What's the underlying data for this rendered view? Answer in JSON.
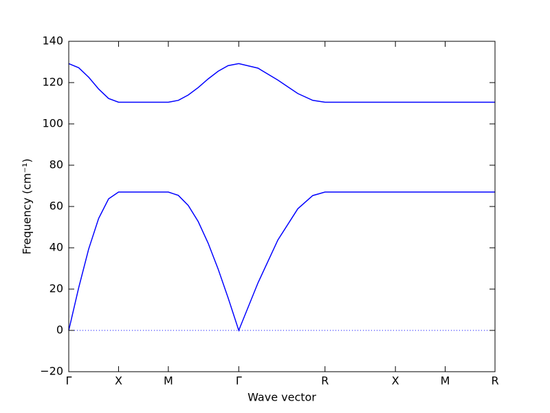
{
  "chart_data": {
    "type": "line",
    "xlabel": "Wave vector",
    "ylabel": "Frequency (cm⁻¹)",
    "x": [
      0,
      0.1,
      0.2,
      0.3,
      0.4,
      0.5,
      0.75,
      1.0,
      1.1,
      1.2,
      1.3,
      1.4,
      1.5,
      1.6,
      1.707,
      1.9,
      2.1,
      2.3,
      2.45,
      2.573,
      3.28,
      3.78,
      4.28
    ],
    "series": [
      {
        "color": "#0000ff",
        "values": [
          0,
          20.7,
          39.4,
          54.2,
          63.7,
          67,
          67,
          67,
          65.4,
          60.5,
          52.7,
          42.2,
          29.7,
          15.8,
          0,
          23.0,
          43.8,
          58.9,
          65.3,
          67,
          67,
          67,
          67
        ]
      },
      {
        "color": "#0000ff",
        "values": [
          129.2,
          127.2,
          122.6,
          116.9,
          112.3,
          110.5,
          110.5,
          110.5,
          111.4,
          114.0,
          117.6,
          121.8,
          125.5,
          128.2,
          129.2,
          127.0,
          121.2,
          114.7,
          111.4,
          110.5,
          110.5,
          110.5,
          110.5
        ]
      }
    ],
    "xlim": [
      0,
      4.28
    ],
    "xticks": [
      {
        "value": 0,
        "label": "Γ"
      },
      {
        "value": 0.5,
        "label": "X"
      },
      {
        "value": 1.0,
        "label": "M"
      },
      {
        "value": 1.707,
        "label": "Γ"
      },
      {
        "value": 2.573,
        "label": "R"
      },
      {
        "value": 3.28,
        "label": "X"
      },
      {
        "value": 3.78,
        "label": "M"
      },
      {
        "value": 4.28,
        "label": "R"
      }
    ],
    "ylim": [
      -20,
      140
    ],
    "yticks": [
      {
        "value": -20,
        "label": "−20"
      },
      0,
      20,
      40,
      60,
      80,
      100,
      120,
      140
    ],
    "hline": 0,
    "grid": false
  }
}
